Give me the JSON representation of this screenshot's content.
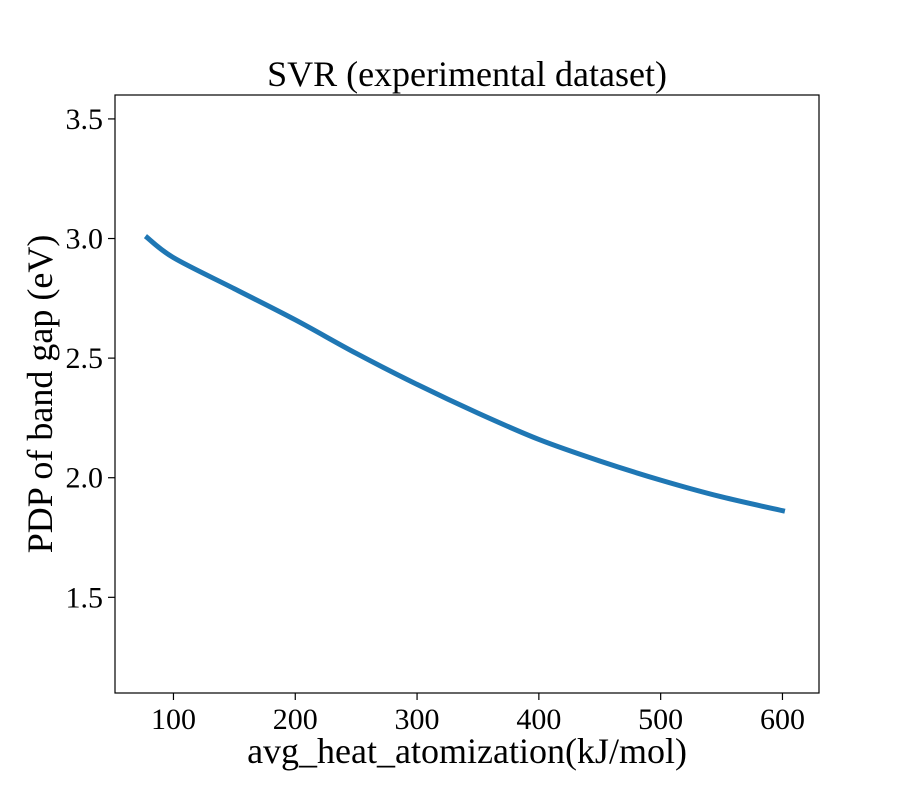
{
  "chart_data": {
    "type": "line",
    "title": "SVR (experimental dataset)",
    "xlabel": "avg_heat_atomization(kJ/mol)",
    "ylabel": "PDP of band gap (eV)",
    "xlim": [
      52,
      630
    ],
    "ylim": [
      1.1,
      3.6
    ],
    "x_ticks": [
      100,
      200,
      300,
      400,
      500,
      600
    ],
    "y_ticks": [
      1.5,
      2.0,
      2.5,
      3.0,
      3.5
    ],
    "x_tick_labels": [
      "100",
      "200",
      "300",
      "400",
      "500",
      "600"
    ],
    "y_tick_labels": [
      "1.5",
      "2.0",
      "2.5",
      "3.0",
      "3.5"
    ],
    "grid": false,
    "series": [
      {
        "color": "#1f77b4",
        "x": [
          77,
          100,
          150,
          200,
          250,
          300,
          350,
          400,
          450,
          500,
          550,
          602
        ],
        "y": [
          3.01,
          2.92,
          2.79,
          2.66,
          2.52,
          2.39,
          2.27,
          2.16,
          2.07,
          1.99,
          1.92,
          1.86
        ]
      }
    ]
  }
}
